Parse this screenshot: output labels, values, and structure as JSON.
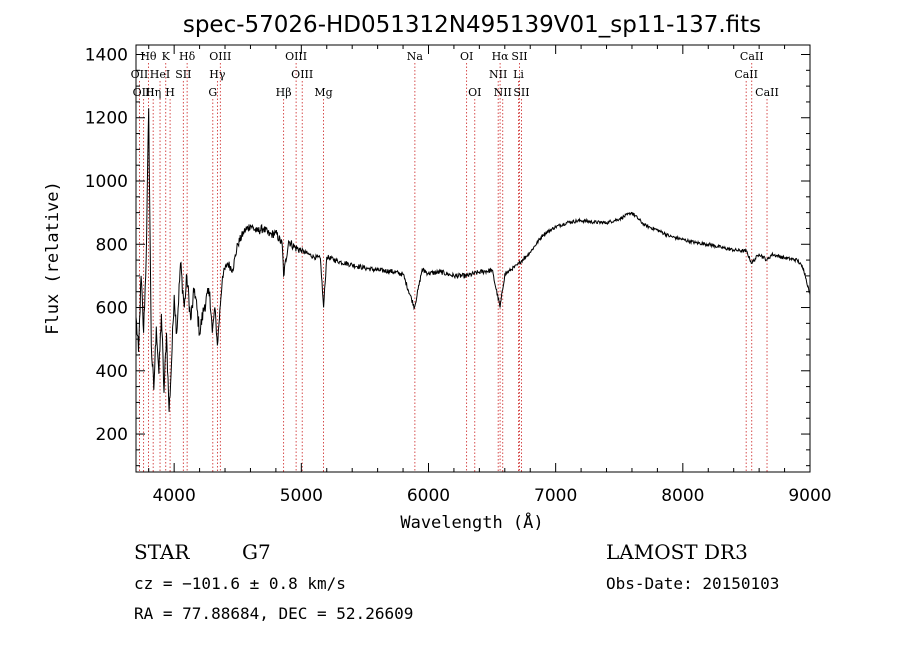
{
  "chart_data": {
    "type": "line",
    "title": "spec-57026-HD051312N495139V01_sp11-137.fits",
    "xlabel": "Wavelength (Å)",
    "ylabel": "Flux (relative)",
    "xlim": [
      3700,
      9000
    ],
    "ylim": [
      80,
      1430
    ],
    "x_ticks": [
      4000,
      5000,
      6000,
      7000,
      8000,
      9000
    ],
    "y_ticks": [
      200,
      400,
      600,
      800,
      1000,
      1200,
      1400
    ],
    "grid": false,
    "legend": "none",
    "series": [
      {
        "color": "#000000",
        "x": [
          3700,
          3720,
          3740,
          3760,
          3780,
          3800,
          3820,
          3840,
          3860,
          3880,
          3900,
          3920,
          3940,
          3960,
          3980,
          4000,
          4020,
          4050,
          4080,
          4100,
          4130,
          4160,
          4200,
          4240,
          4280,
          4300,
          4320,
          4340,
          4380,
          4420,
          4460,
          4500,
          4550,
          4600,
          4650,
          4700,
          4750,
          4800,
          4850,
          4861,
          4900,
          4950,
          5000,
          5050,
          5100,
          5150,
          5175,
          5200,
          5300,
          5400,
          5500,
          5600,
          5700,
          5800,
          5890,
          5950,
          6000,
          6100,
          6200,
          6300,
          6400,
          6500,
          6563,
          6600,
          6700,
          6800,
          6900,
          7000,
          7100,
          7200,
          7300,
          7400,
          7500,
          7600,
          7700,
          7800,
          7900,
          8000,
          8100,
          8200,
          8300,
          8400,
          8500,
          8542,
          8600,
          8662,
          8700,
          8800,
          8900,
          8950,
          9000
        ],
        "y": [
          570,
          460,
          700,
          520,
          760,
          1230,
          480,
          340,
          540,
          390,
          580,
          330,
          520,
          270,
          430,
          640,
          520,
          740,
          600,
          700,
          560,
          660,
          520,
          610,
          650,
          520,
          600,
          480,
          700,
          740,
          720,
          800,
          840,
          860,
          840,
          850,
          830,
          835,
          800,
          700,
          810,
          790,
          780,
          770,
          760,
          755,
          600,
          760,
          745,
          735,
          725,
          718,
          715,
          705,
          600,
          720,
          708,
          712,
          700,
          700,
          712,
          718,
          600,
          705,
          735,
          775,
          830,
          855,
          870,
          875,
          870,
          868,
          880,
          900,
          860,
          845,
          825,
          815,
          805,
          800,
          790,
          782,
          778,
          740,
          770,
          750,
          768,
          757,
          750,
          722,
          640
        ]
      }
    ],
    "spectral_lines": [
      {
        "label": "Hθ",
        "wavelength": 3798,
        "row": 0
      },
      {
        "label": "K",
        "wavelength": 3934,
        "row": 0
      },
      {
        "label": "Hδ",
        "wavelength": 4102,
        "row": 0
      },
      {
        "label": "OIII",
        "wavelength": 4363,
        "row": 0
      },
      {
        "label": "OIII",
        "wavelength": 4959,
        "row": 0
      },
      {
        "label": "Na",
        "wavelength": 5893,
        "row": 0
      },
      {
        "label": "OI",
        "wavelength": 6300,
        "row": 0
      },
      {
        "label": "Hα",
        "wavelength": 6563,
        "row": 0
      },
      {
        "label": "SII",
        "wavelength": 6716,
        "row": 0
      },
      {
        "label": "CaII",
        "wavelength": 8542,
        "row": 0
      },
      {
        "label": "OII",
        "wavelength": 3727,
        "row": 1
      },
      {
        "label": "HeI",
        "wavelength": 3889,
        "row": 1
      },
      {
        "label": "SII",
        "wavelength": 4072,
        "row": 1
      },
      {
        "label": "Hγ",
        "wavelength": 4340,
        "row": 1
      },
      {
        "label": "OIII",
        "wavelength": 5007,
        "row": 1
      },
      {
        "label": "NII",
        "wavelength": 6548,
        "row": 1
      },
      {
        "label": "Li",
        "wavelength": 6708,
        "row": 1
      },
      {
        "label": "CaII",
        "wavelength": 8498,
        "row": 1
      },
      {
        "label": "OIII",
        "wavelength": 3760,
        "row": 2
      },
      {
        "label": "Hη",
        "wavelength": 3835,
        "row": 2
      },
      {
        "label": "H",
        "wavelength": 3968,
        "row": 2
      },
      {
        "label": "G",
        "wavelength": 4304,
        "row": 2
      },
      {
        "label": "Hβ",
        "wavelength": 4861,
        "row": 2
      },
      {
        "label": "Mg",
        "wavelength": 5175,
        "row": 2
      },
      {
        "label": "OI",
        "wavelength": 6364,
        "row": 2
      },
      {
        "label": "NII",
        "wavelength": 6584,
        "row": 2
      },
      {
        "label": "SII",
        "wavelength": 6731,
        "row": 2
      },
      {
        "label": "CaII",
        "wavelength": 8662,
        "row": 2
      }
    ],
    "line_color": "#cc2222"
  },
  "info": {
    "object_class": "STAR",
    "subclass": "G7",
    "redshift_text": "cz = −101.6 ± 0.8 km/s",
    "coords_text": "RA =  77.88684, DEC =  52.26609",
    "survey": "LAMOST DR3",
    "obs_date_text": "Obs-Date: 20150103"
  }
}
